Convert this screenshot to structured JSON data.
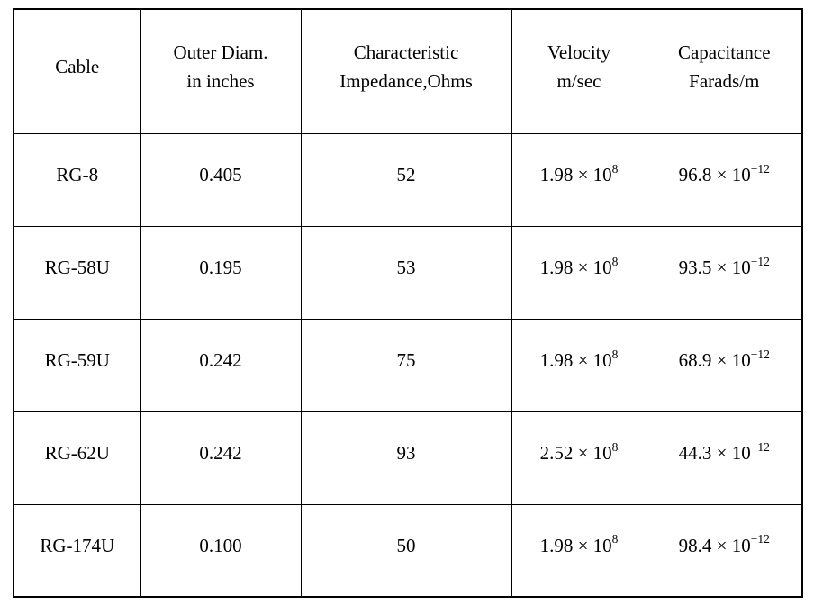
{
  "table": {
    "times_sign": "×",
    "headers": [
      {
        "line1": "Cable",
        "line2": ""
      },
      {
        "line1": "Outer Diam.",
        "line2": "in inches"
      },
      {
        "line1": "Characteristic",
        "line2": "Impedance,Ohms"
      },
      {
        "line1": "Velocity",
        "line2": "m/sec"
      },
      {
        "line1": "Capacitance",
        "line2": "Farads/m"
      }
    ],
    "rows": [
      {
        "cable": "RG-8",
        "outer_diam": "0.405",
        "impedance": "52",
        "velocity": {
          "mantissa": "1.98",
          "base": "10",
          "exponent": "8"
        },
        "capacitance": {
          "mantissa": "96.8",
          "base": "10",
          "exponent": "−12"
        }
      },
      {
        "cable": "RG-58U",
        "outer_diam": "0.195",
        "impedance": "53",
        "velocity": {
          "mantissa": "1.98",
          "base": "10",
          "exponent": "8"
        },
        "capacitance": {
          "mantissa": "93.5",
          "base": "10",
          "exponent": "−12"
        }
      },
      {
        "cable": "RG-59U",
        "outer_diam": "0.242",
        "impedance": "75",
        "velocity": {
          "mantissa": "1.98",
          "base": "10",
          "exponent": "8"
        },
        "capacitance": {
          "mantissa": "68.9",
          "base": "10",
          "exponent": "−12"
        }
      },
      {
        "cable": "RG-62U",
        "outer_diam": "0.242",
        "impedance": "93",
        "velocity": {
          "mantissa": "2.52",
          "base": "10",
          "exponent": "8"
        },
        "capacitance": {
          "mantissa": "44.3",
          "base": "10",
          "exponent": "−12"
        }
      },
      {
        "cable": "RG-174U",
        "outer_diam": "0.100",
        "impedance": "50",
        "velocity": {
          "mantissa": "1.98",
          "base": "10",
          "exponent": "8"
        },
        "capacitance": {
          "mantissa": "98.4",
          "base": "10",
          "exponent": "−12"
        }
      }
    ]
  }
}
